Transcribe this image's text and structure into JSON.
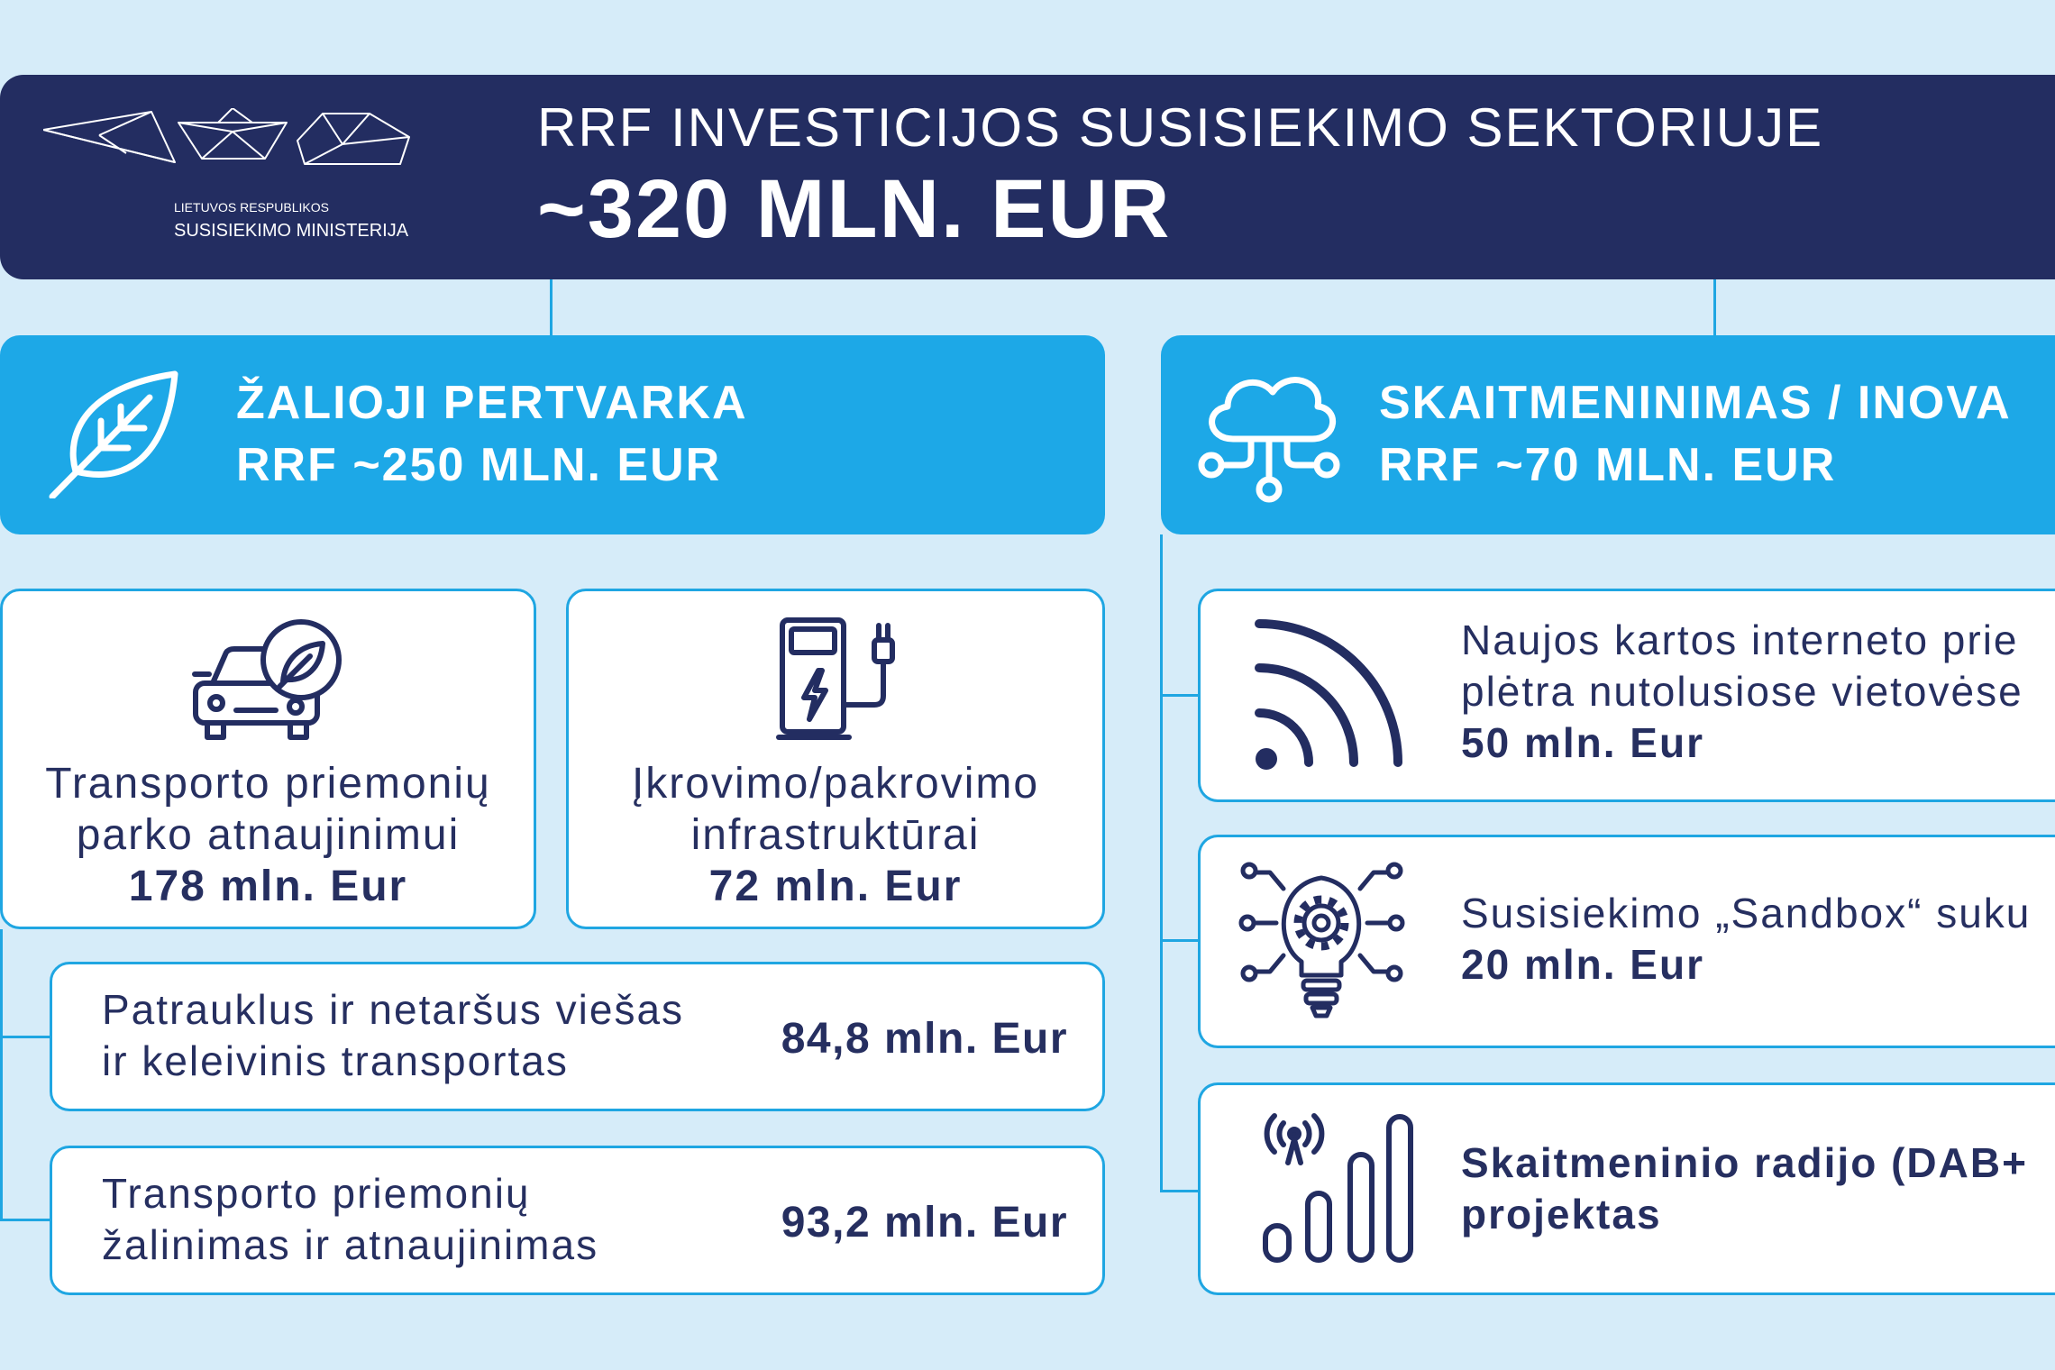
{
  "colors": {
    "background": "#d6ecf9",
    "navy": "#232d61",
    "accent": "#1da8e7",
    "border": "#1fa6e2",
    "card": "#ffffff",
    "text": "#262f60"
  },
  "header": {
    "logo_icon": "origami-logo-icon",
    "logo_line1": "LIETUVOS RESPUBLIKOS",
    "logo_line2": "SUSISIEKIMO MINISTERIJA",
    "title": "RRF INVESTICIJOS SUSISIEKIMO SEKTORIUJE",
    "total": "~320 MLN. EUR"
  },
  "green": {
    "icon": "leaf-icon",
    "title": "ŽALIOJI PERTVARKA",
    "amount": "RRF ~250 MLN. EUR",
    "cards": [
      {
        "icon": "car-leaf-icon",
        "line1": "Transporto priemonių",
        "line2": "parko atnaujinimui",
        "amount": "178 mln. Eur"
      },
      {
        "icon": "charging-station-icon",
        "line1": "Įkrovimo/pakrovimo",
        "line2": "infrastruktūrai",
        "amount": "72 mln. Eur"
      }
    ],
    "rows": [
      {
        "line1": "Patrauklus ir netaršus viešas",
        "line2": "ir keleivinis transportas",
        "amount": "84,8 mln. Eur"
      },
      {
        "line1": "Transporto priemonių",
        "line2": "žalinimas ir atnaujinimas",
        "amount": "93,2 mln. Eur"
      }
    ]
  },
  "digital": {
    "icon": "cloud-network-icon",
    "title": "SKAITMENINIMAS / INOVA",
    "amount": "RRF ~70 MLN. EUR",
    "items": [
      {
        "icon": "signal-waves-icon",
        "line1": "Naujos kartos interneto prie",
        "line2": "plėtra nutolusiose vietovėse",
        "amount": "50 mln. Eur"
      },
      {
        "icon": "lightbulb-gear-icon",
        "line1": "Susisiekimo „Sandbox“ suku",
        "amount": "20 mln. Eur"
      },
      {
        "icon": "radio-signal-icon",
        "line1": "Skaitmeninio radijo (DAB+",
        "line2": "projektas"
      }
    ]
  }
}
